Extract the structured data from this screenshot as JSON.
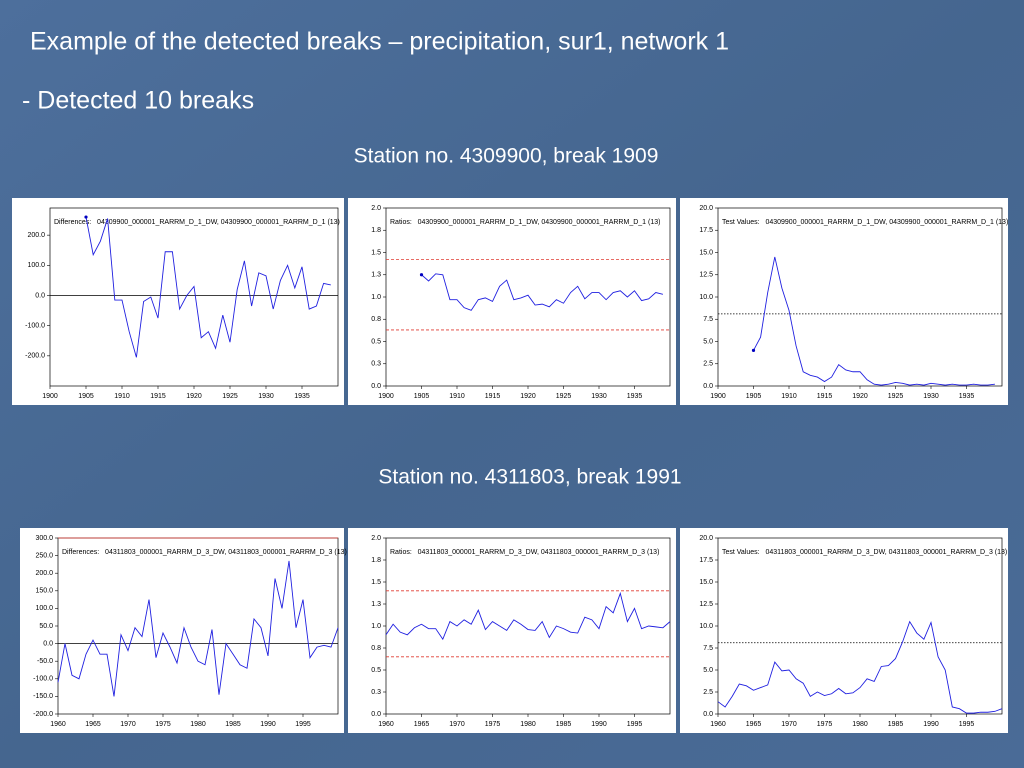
{
  "slide": {
    "title": "Example of the detected breaks – precipitation, sur1, network 1",
    "subtitle": "- Detected 10 breaks",
    "stations": [
      "Station no. 4309900, break 1909",
      "Station no. 4311803, break 1991"
    ]
  },
  "chart_data": [
    {
      "type": "line",
      "title": "Differences:   04309900_000001_RARRM_D_1_DW, 04309900_000001_RARRM_D_1 (13)",
      "x": [
        1905,
        1906,
        1907,
        1908,
        1909,
        1910,
        1911,
        1912,
        1913,
        1914,
        1915,
        1916,
        1917,
        1918,
        1919,
        1920,
        1921,
        1922,
        1923,
        1924,
        1925,
        1926,
        1927,
        1928,
        1929,
        1930,
        1931,
        1932,
        1933,
        1934,
        1935,
        1936,
        1937,
        1938,
        1939
      ],
      "series": [
        {
          "color": "#2020e0",
          "values": [
            260,
            135,
            180,
            255,
            -15,
            -15,
            -120,
            -205,
            -20,
            -5,
            -75,
            145,
            145,
            -45,
            0,
            30,
            -140,
            -120,
            -175,
            -65,
            -155,
            20,
            115,
            -35,
            75,
            65,
            -45,
            50,
            100,
            25,
            95,
            -45,
            -35,
            40,
            35
          ]
        }
      ],
      "start_marker": true,
      "xlim": [
        1900,
        1940
      ],
      "xticks": [
        1900,
        1905,
        1910,
        1915,
        1920,
        1925,
        1930,
        1935
      ],
      "ylim": [
        -300,
        290
      ],
      "yticks": [
        {
          "value": -200,
          "label": "-200.0"
        },
        {
          "value": -100,
          "label": "-100.0"
        },
        {
          "value": 0,
          "label": "0.0"
        },
        {
          "value": 100,
          "label": "100.0"
        },
        {
          "value": 200,
          "label": "200.0"
        }
      ],
      "hlines": [
        {
          "value": 0,
          "color": "#000000",
          "style": "solid"
        }
      ]
    },
    {
      "type": "line",
      "title": "Ratios:   04309900_000001_RARRM_D_1_DW, 04309900_000001_RARRM_D_1 (13)",
      "x": [
        1905,
        1906,
        1907,
        1908,
        1909,
        1910,
        1911,
        1912,
        1913,
        1914,
        1915,
        1916,
        1917,
        1918,
        1919,
        1920,
        1921,
        1922,
        1923,
        1924,
        1925,
        1926,
        1927,
        1928,
        1929,
        1930,
        1931,
        1932,
        1933,
        1934,
        1935,
        1936,
        1937,
        1938,
        1939
      ],
      "series": [
        {
          "color": "#2020e0",
          "values": [
            1.25,
            1.18,
            1.26,
            1.25,
            0.97,
            0.97,
            0.88,
            0.85,
            0.97,
            0.99,
            0.95,
            1.12,
            1.19,
            0.97,
            0.99,
            1.02,
            0.91,
            0.92,
            0.89,
            0.97,
            0.93,
            1.05,
            1.12,
            0.98,
            1.05,
            1.05,
            0.97,
            1.05,
            1.07,
            1.0,
            1.07,
            0.96,
            0.98,
            1.05,
            1.03
          ]
        }
      ],
      "start_marker": true,
      "xlim": [
        1900,
        1940
      ],
      "xticks": [
        1900,
        1905,
        1910,
        1915,
        1920,
        1925,
        1930,
        1935
      ],
      "ylim": [
        0,
        2
      ],
      "yticks": [
        {
          "value": 0,
          "label": "0.0"
        },
        {
          "value": 0.25,
          "label": "0.3"
        },
        {
          "value": 0.5,
          "label": "0.5"
        },
        {
          "value": 0.75,
          "label": "0.8"
        },
        {
          "value": 1,
          "label": "1.0"
        },
        {
          "value": 1.25,
          "label": "1.3"
        },
        {
          "value": 1.5,
          "label": "1.5"
        },
        {
          "value": 1.75,
          "label": "1.8"
        },
        {
          "value": 2,
          "label": "2.0"
        }
      ],
      "hlines": [
        {
          "value": 1.42,
          "color": "#e03a30",
          "style": "dashed"
        },
        {
          "value": 0.63,
          "color": "#e03a30",
          "style": "dashed"
        }
      ]
    },
    {
      "type": "line",
      "title": "Test Values:   04309900_000001_RARRM_D_1_DW, 04309900_000001_RARRM_D_1 (13)",
      "x": [
        1905,
        1906,
        1907,
        1908,
        1909,
        1910,
        1911,
        1912,
        1913,
        1914,
        1915,
        1916,
        1917,
        1918,
        1919,
        1920,
        1921,
        1922,
        1923,
        1924,
        1925,
        1926,
        1927,
        1928,
        1929,
        1930,
        1931,
        1932,
        1933,
        1934,
        1935,
        1936,
        1937,
        1938,
        1939
      ],
      "series": [
        {
          "color": "#2020e0",
          "values": [
            4.0,
            5.5,
            10.5,
            14.5,
            11,
            8.5,
            4.5,
            1.6,
            1.2,
            1.0,
            0.5,
            1.0,
            2.4,
            1.8,
            1.6,
            1.6,
            0.7,
            0.2,
            0.1,
            0.2,
            0.4,
            0.3,
            0.1,
            0.2,
            0.1,
            0.3,
            0.2,
            0.1,
            0.2,
            0.1,
            0.1,
            0.2,
            0.1,
            0.1,
            0.2
          ]
        }
      ],
      "start_marker": true,
      "xlim": [
        1900,
        1940
      ],
      "xticks": [
        1900,
        1905,
        1910,
        1915,
        1920,
        1925,
        1930,
        1935
      ],
      "ylim": [
        0,
        20
      ],
      "yticks": [
        {
          "value": 0,
          "label": "0.0"
        },
        {
          "value": 2.5,
          "label": "2.5"
        },
        {
          "value": 5,
          "label": "5.0"
        },
        {
          "value": 7.5,
          "label": "7.5"
        },
        {
          "value": 10,
          "label": "10.0"
        },
        {
          "value": 12.5,
          "label": "12.5"
        },
        {
          "value": 15,
          "label": "15.0"
        },
        {
          "value": 17.5,
          "label": "17.5"
        },
        {
          "value": 20,
          "label": "20.0"
        }
      ],
      "hlines": [
        {
          "value": 8.1,
          "color": "#000000",
          "style": "dotted"
        }
      ]
    },
    {
      "type": "line",
      "title": "Differences:   04311803_000001_RARRM_D_3_DW, 04311803_000001_RARRM_D_3 (13)",
      "x": [
        1960,
        1961,
        1962,
        1963,
        1964,
        1965,
        1966,
        1967,
        1968,
        1969,
        1970,
        1971,
        1972,
        1973,
        1974,
        1975,
        1976,
        1977,
        1978,
        1979,
        1980,
        1981,
        1982,
        1983,
        1984,
        1985,
        1986,
        1987,
        1988,
        1989,
        1990,
        1991,
        1992,
        1993,
        1994,
        1995,
        1996,
        1997,
        1998,
        1999,
        2000
      ],
      "series": [
        {
          "color": "#2020e0",
          "values": [
            -110,
            0,
            -90,
            -100,
            -30,
            10,
            -30,
            -30,
            -150,
            25,
            -20,
            45,
            20,
            125,
            -40,
            30,
            -10,
            -55,
            45,
            -10,
            -50,
            -60,
            40,
            -145,
            0,
            -30,
            -60,
            -70,
            70,
            45,
            -35,
            185,
            100,
            235,
            45,
            125,
            -40,
            -10,
            -5,
            -10,
            45
          ]
        }
      ],
      "start_marker": false,
      "xlim": [
        1960,
        2000
      ],
      "xticks": [
        1960,
        1965,
        1970,
        1975,
        1980,
        1985,
        1990,
        1995
      ],
      "ylim": [
        -200,
        300
      ],
      "yticks": [
        {
          "value": -200,
          "label": "-200.0"
        },
        {
          "value": -150,
          "label": "-150.0"
        },
        {
          "value": -100,
          "label": "-100.0"
        },
        {
          "value": -50,
          "label": "-50.0"
        },
        {
          "value": 0,
          "label": "0.0"
        },
        {
          "value": 50,
          "label": "50.0"
        },
        {
          "value": 100,
          "label": "100.0"
        },
        {
          "value": 150,
          "label": "150.0"
        },
        {
          "value": 200,
          "label": "200.0"
        },
        {
          "value": 250,
          "label": "250.0"
        },
        {
          "value": 300,
          "label": "300.0"
        }
      ],
      "hlines": [
        {
          "value": 0,
          "color": "#000000",
          "style": "solid"
        },
        {
          "value": 300,
          "color": "#e03a30",
          "style": "solid"
        }
      ]
    },
    {
      "type": "line",
      "title": "Ratios:   04311803_000001_RARRM_D_3_DW, 04311803_000001_RARRM_D_3 (13)",
      "x": [
        1960,
        1961,
        1962,
        1963,
        1964,
        1965,
        1966,
        1967,
        1968,
        1969,
        1970,
        1971,
        1972,
        1973,
        1974,
        1975,
        1976,
        1977,
        1978,
        1979,
        1980,
        1981,
        1982,
        1983,
        1984,
        1985,
        1986,
        1987,
        1988,
        1989,
        1990,
        1991,
        1992,
        1993,
        1994,
        1995,
        1996,
        1997,
        1998,
        1999,
        2000
      ],
      "series": [
        {
          "color": "#2020e0",
          "values": [
            0.9,
            1.02,
            0.93,
            0.9,
            0.98,
            1.02,
            0.97,
            0.97,
            0.85,
            1.05,
            1.0,
            1.07,
            1.02,
            1.18,
            0.96,
            1.05,
            1.0,
            0.95,
            1.07,
            1.02,
            0.96,
            0.95,
            1.05,
            0.87,
            1.0,
            0.97,
            0.93,
            0.92,
            1.1,
            1.07,
            0.97,
            1.22,
            1.15,
            1.37,
            1.05,
            1.2,
            0.97,
            1.0,
            0.99,
            0.98,
            1.05
          ]
        }
      ],
      "start_marker": false,
      "xlim": [
        1960,
        2000
      ],
      "xticks": [
        1960,
        1965,
        1970,
        1975,
        1980,
        1985,
        1990,
        1995
      ],
      "ylim": [
        0,
        2
      ],
      "yticks": [
        {
          "value": 0,
          "label": "0.0"
        },
        {
          "value": 0.25,
          "label": "0.3"
        },
        {
          "value": 0.5,
          "label": "0.5"
        },
        {
          "value": 0.75,
          "label": "0.8"
        },
        {
          "value": 1,
          "label": "1.0"
        },
        {
          "value": 1.25,
          "label": "1.3"
        },
        {
          "value": 1.5,
          "label": "1.5"
        },
        {
          "value": 1.75,
          "label": "1.8"
        },
        {
          "value": 2,
          "label": "2.0"
        }
      ],
      "hlines": [
        {
          "value": 1.4,
          "color": "#e03a30",
          "style": "dashed"
        },
        {
          "value": 0.65,
          "color": "#e03a30",
          "style": "dashed"
        }
      ]
    },
    {
      "type": "line",
      "title": "Test Values:   04311803_000001_RARRM_D_3_DW, 04311803_000001_RARRM_D_3 (13)",
      "x": [
        1960,
        1961,
        1962,
        1963,
        1964,
        1965,
        1966,
        1967,
        1968,
        1969,
        1970,
        1971,
        1972,
        1973,
        1974,
        1975,
        1976,
        1977,
        1978,
        1979,
        1980,
        1981,
        1982,
        1983,
        1984,
        1985,
        1986,
        1987,
        1988,
        1989,
        1990,
        1991,
        1992,
        1993,
        1994,
        1995,
        1996,
        1997,
        1998,
        1999,
        2000
      ],
      "series": [
        {
          "color": "#2020e0",
          "values": [
            1.4,
            0.8,
            2.0,
            3.4,
            3.2,
            2.7,
            3.0,
            3.3,
            5.9,
            4.9,
            5.0,
            4.0,
            3.5,
            2.0,
            2.5,
            2.1,
            2.3,
            2.9,
            2.3,
            2.4,
            3.0,
            4.0,
            3.7,
            5.4,
            5.5,
            6.3,
            8.2,
            10.5,
            9.2,
            8.5,
            10.4,
            6.5,
            5.0,
            0.8,
            0.6,
            0.1,
            0.1,
            0.2,
            0.2,
            0.3,
            0.6
          ]
        }
      ],
      "start_marker": false,
      "xlim": [
        1960,
        2000
      ],
      "xticks": [
        1960,
        1965,
        1970,
        1975,
        1980,
        1985,
        1990,
        1995
      ],
      "ylim": [
        0,
        20
      ],
      "yticks": [
        {
          "value": 0,
          "label": "0.0"
        },
        {
          "value": 2.5,
          "label": "2.5"
        },
        {
          "value": 5,
          "label": "5.0"
        },
        {
          "value": 7.5,
          "label": "7.5"
        },
        {
          "value": 10,
          "label": "10.0"
        },
        {
          "value": 12.5,
          "label": "12.5"
        },
        {
          "value": 15,
          "label": "15.0"
        },
        {
          "value": 17.5,
          "label": "17.5"
        },
        {
          "value": 20,
          "label": "20.0"
        }
      ],
      "hlines": [
        {
          "value": 8.1,
          "color": "#000000",
          "style": "dotted"
        }
      ]
    }
  ]
}
